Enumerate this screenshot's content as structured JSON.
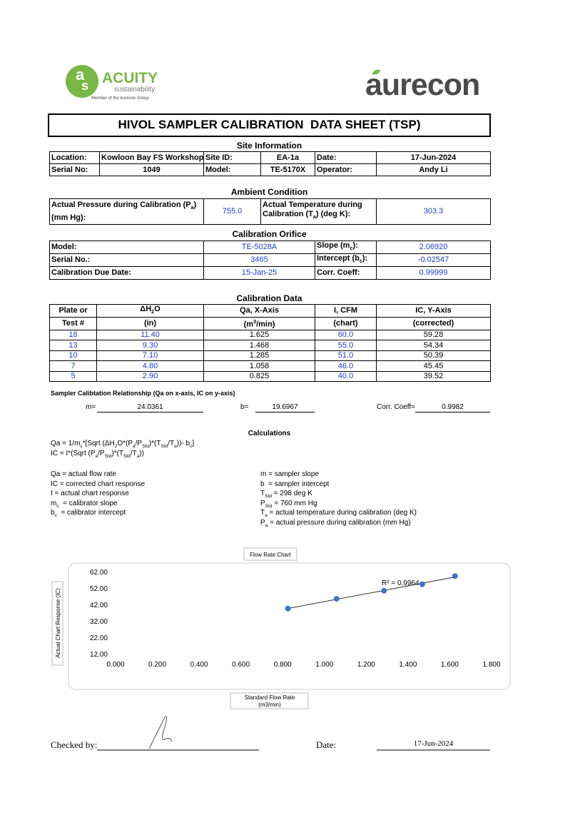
{
  "header": {
    "brand": "ACUITY",
    "tagline": "sustainability",
    "member": "Member of the Aurecon Group",
    "partner": "aurecon"
  },
  "title": "HIVOL SAMPLER CALIBRATION  DATA SHEET (TSP)",
  "site_information": {
    "heading": "Site Information",
    "rows": [
      [
        "Location:",
        "Kowloon Bay FS Workshop",
        "Site ID:",
        "EA-1a",
        "Date:",
        "17-Jun-2024"
      ],
      [
        "Serial No:",
        "1049",
        "Model:",
        "TE-5170X",
        "Operator:",
        "Andy Li"
      ]
    ]
  },
  "ambient": {
    "heading": "Ambient Condition",
    "row": [
      [
        "Actual Pressure during Calibration (P",
        {
          "sub": "a"
        },
        ") (mm Hg):"
      ],
      "755.0",
      [
        "Actual Temperature during Calibration (T",
        {
          "sub": "a"
        },
        ") (deg K):"
      ],
      "303.3"
    ]
  },
  "orifice": {
    "heading": "Calibration Orifice",
    "rows": [
      [
        "Model:",
        "TE-5028A",
        [
          "Slope (m",
          {
            "sub": "c"
          },
          "):"
        ],
        "2.06920"
      ],
      [
        "Serial No.:",
        "3465",
        [
          "Intercept (b",
          {
            "sub": "c"
          },
          "):"
        ],
        "-0.02547"
      ],
      [
        "Calibration Due Date:",
        "15-Jan-25",
        [
          "Corr. Coeff:"
        ],
        "0.99999"
      ]
    ]
  },
  "calibration_data": {
    "heading": "Calibration Data",
    "header_rows": [
      [
        "Plate or",
        [
          "ΔH",
          {
            "sub": "2"
          },
          "O"
        ],
        "Qa, X-Axis",
        "I, CFM",
        "IC, Y-Axis"
      ],
      [
        "Test #",
        "(in)",
        [
          "(m",
          {
            "sup": "3"
          },
          "/min)"
        ],
        "(chart)",
        "(corrected)"
      ]
    ],
    "rows": [
      [
        "18",
        "11.40",
        "1.625",
        "60.0",
        "59.28"
      ],
      [
        "13",
        "9.30",
        "1.468",
        "55.0",
        "54.34"
      ],
      [
        "10",
        "7.10",
        "1.285",
        "51.0",
        "50.39"
      ],
      [
        "7",
        "4.80",
        "1.058",
        "46.0",
        "45.45"
      ],
      [
        "5",
        "2.90",
        "0.825",
        "40.0",
        "39.52"
      ]
    ]
  },
  "relationship": {
    "heading": "Sampler Calibtation Relationship (Qa on x-axis, IC on y-axis)",
    "m_label": "m=",
    "m": "24.0361",
    "b_label": "b=",
    "b": "19.6967",
    "corr_label": "Corr. Coeff=",
    "corr": "0.9982"
  },
  "calculations": {
    "heading": "Calculations",
    "formulas": [
      [
        "Qa = 1/m",
        {
          "sub": "c"
        },
        "*[Sqrt (ΔH",
        {
          "sub": "2"
        },
        "O*(P",
        {
          "sub": "a"
        },
        "/P",
        {
          "sub": "Std"
        },
        ")*(T",
        {
          "sub": "Std"
        },
        "/T",
        {
          "sub": "a"
        },
        "))- b",
        {
          "sub": "c"
        },
        "]"
      ],
      [
        "IC = I*(Sqrt (P",
        {
          "sub": "a"
        },
        "/P",
        {
          "sub": "Std"
        },
        ")*(T",
        {
          "sub": "Std"
        },
        "/T",
        {
          "sub": "a"
        },
        "))"
      ]
    ],
    "definitions_left": [
      [
        "Qa = actual flow rate"
      ],
      [
        "IC = corrected chart response"
      ],
      [
        "I = actual chart response"
      ],
      [
        "m",
        {
          "sub": "c"
        },
        "  = calibrator slope"
      ],
      [
        "b",
        {
          "sub": "c"
        },
        "  = calibrator intercept"
      ]
    ],
    "definitions_right": [
      [
        "m = sampler slope"
      ],
      [
        "b  = sampler intercept"
      ],
      [
        "T",
        {
          "sub": "Std"
        },
        " = 298 deg K"
      ],
      [
        "P",
        {
          "sub": "Std"
        },
        " = 760 mm Hg"
      ],
      [
        "T",
        {
          "sub": "a"
        },
        " = actual temperature during calibration (deg K)"
      ],
      [
        "P",
        {
          "sub": "a"
        },
        " = actual pressure during calibration (mm Hg)"
      ]
    ]
  },
  "chart_data": {
    "type": "scatter",
    "title": "Flow Rate Chart",
    "x_label": [
      "Standard Flow Rate",
      "(m3/min)"
    ],
    "y_label": "Actual Chart Response (IC)",
    "annotation": "R² = 0.9964",
    "x": [
      1.625,
      1.468,
      1.285,
      1.058,
      0.825
    ],
    "series": [
      {
        "color": "#4472c4",
        "values": [
          59.28,
          54.34,
          50.39,
          45.45,
          39.52
        ]
      }
    ],
    "trendline": true,
    "grid": false,
    "xlim": [
      0,
      1.8
    ],
    "xticks": [
      {
        "value": 0,
        "label": "0.000"
      },
      {
        "value": 0.2,
        "label": "0.200"
      },
      {
        "value": 0.4,
        "label": "0.400"
      },
      {
        "value": 0.6,
        "label": "0.600"
      },
      {
        "value": 0.8,
        "label": "0.800"
      },
      {
        "value": 1,
        "label": "1.000"
      },
      {
        "value": 1.2,
        "label": "1.200"
      },
      {
        "value": 1.4,
        "label": "1.400"
      },
      {
        "value": 1.6,
        "label": "1.600"
      },
      {
        "value": 1.8,
        "label": "1.800"
      }
    ],
    "ylim": [
      12,
      62
    ],
    "yticks": [
      {
        "value": 12,
        "label": "12.00"
      },
      {
        "value": 22,
        "label": "22.00"
      },
      {
        "value": 32,
        "label": "32.00"
      },
      {
        "value": 42,
        "label": "42.00"
      },
      {
        "value": 52,
        "label": "52.00"
      },
      {
        "value": 62,
        "label": "62.00"
      }
    ]
  },
  "footer": {
    "checked_label": "Checked by:",
    "date_label": "Date:",
    "date": "17-Jun-2024"
  }
}
